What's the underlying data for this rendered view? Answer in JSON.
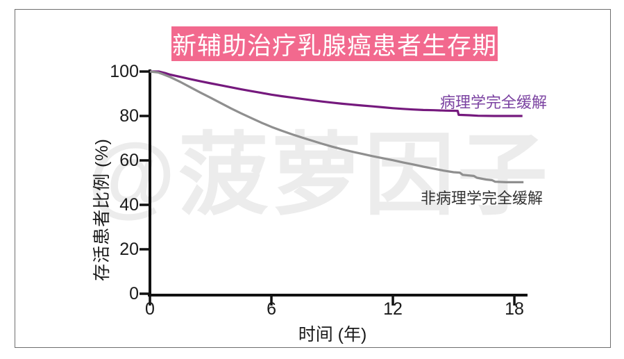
{
  "title": {
    "text": "新辅助治疗乳腺癌患者生存期",
    "bg_color": "#F2698E",
    "text_color": "#FFFFFF"
  },
  "watermark": {
    "text": "@菠萝因子",
    "color": "#ECECEC"
  },
  "frame": {
    "border_color": "#6E6E6E"
  },
  "chart_data": {
    "type": "line",
    "subtype": "kaplan-meier-survival",
    "title": "新辅助治疗乳腺癌患者生存期",
    "xlabel": "时间 (年)",
    "ylabel": "存活患者比例 (%)",
    "xlim": [
      0,
      18.6
    ],
    "ylim": [
      0,
      100
    ],
    "x_ticks": [
      0,
      6,
      12,
      18
    ],
    "y_ticks": [
      0,
      20,
      40,
      60,
      80,
      100
    ],
    "grid": false,
    "legend_position": "inline-labels",
    "axis_color": "#111111",
    "series": [
      {
        "name": "病理学完全缓解",
        "color": "#75197D",
        "label_color": "#7B42A1",
        "points": [
          [
            0,
            100
          ],
          [
            0.45,
            100
          ],
          [
            0.8,
            99.2
          ],
          [
            1,
            98.6
          ],
          [
            1.5,
            97.6
          ],
          [
            2,
            96.6
          ],
          [
            2.5,
            95.6
          ],
          [
            3,
            94.7
          ],
          [
            3.5,
            93.8
          ],
          [
            4,
            92.9
          ],
          [
            4.5,
            92
          ],
          [
            5,
            91.2
          ],
          [
            5.5,
            90.4
          ],
          [
            6,
            89.6
          ],
          [
            6.5,
            88.9
          ],
          [
            7,
            88.3
          ],
          [
            7.5,
            87.7
          ],
          [
            8,
            87.1
          ],
          [
            8.5,
            86.5
          ],
          [
            9,
            86
          ],
          [
            9.5,
            85.5
          ],
          [
            10,
            85.1
          ],
          [
            10.5,
            84.7
          ],
          [
            11,
            84.3
          ],
          [
            11.5,
            83.9
          ],
          [
            12,
            83.5
          ],
          [
            12.5,
            83.2
          ],
          [
            13,
            82.9
          ],
          [
            13.5,
            82.7
          ],
          [
            14,
            82.6
          ],
          [
            14.6,
            82.4
          ],
          [
            15.2,
            82.3
          ],
          [
            15.25,
            80.5
          ],
          [
            15.8,
            80.3
          ],
          [
            16.2,
            80.1
          ],
          [
            17,
            80
          ],
          [
            18.4,
            80
          ]
        ]
      },
      {
        "name": "非病理学完全缓解",
        "color": "#8F8F8F",
        "label_color": "#333333",
        "points": [
          [
            0,
            100
          ],
          [
            0.4,
            99.6
          ],
          [
            0.7,
            98.6
          ],
          [
            1,
            97.5
          ],
          [
            1.5,
            95.3
          ],
          [
            2,
            92.9
          ],
          [
            2.5,
            90.5
          ],
          [
            3,
            88.2
          ],
          [
            3.5,
            85.8
          ],
          [
            4,
            83.4
          ],
          [
            4.5,
            81.2
          ],
          [
            5,
            79.1
          ],
          [
            5.5,
            77
          ],
          [
            6,
            75.1
          ],
          [
            6.5,
            73.4
          ],
          [
            7,
            71.8
          ],
          [
            7.5,
            70.3
          ],
          [
            8,
            68.9
          ],
          [
            8.5,
            67.5
          ],
          [
            9,
            66.2
          ],
          [
            9.5,
            65
          ],
          [
            10,
            63.9
          ],
          [
            10.5,
            62.9
          ],
          [
            11,
            61.9
          ],
          [
            11.5,
            61
          ],
          [
            12,
            60.1
          ],
          [
            12.5,
            59.1
          ],
          [
            13,
            58.2
          ],
          [
            13.5,
            57.2
          ],
          [
            14,
            56.3
          ],
          [
            14.5,
            55.4
          ],
          [
            15,
            54.7
          ],
          [
            15.3,
            54.5
          ],
          [
            15.45,
            53.5
          ],
          [
            16,
            53
          ],
          [
            16.15,
            52.2
          ],
          [
            16.6,
            51.4
          ],
          [
            16.9,
            51.1
          ],
          [
            17.05,
            50.4
          ],
          [
            17.6,
            50.2
          ],
          [
            18.45,
            50.2
          ]
        ]
      }
    ]
  }
}
